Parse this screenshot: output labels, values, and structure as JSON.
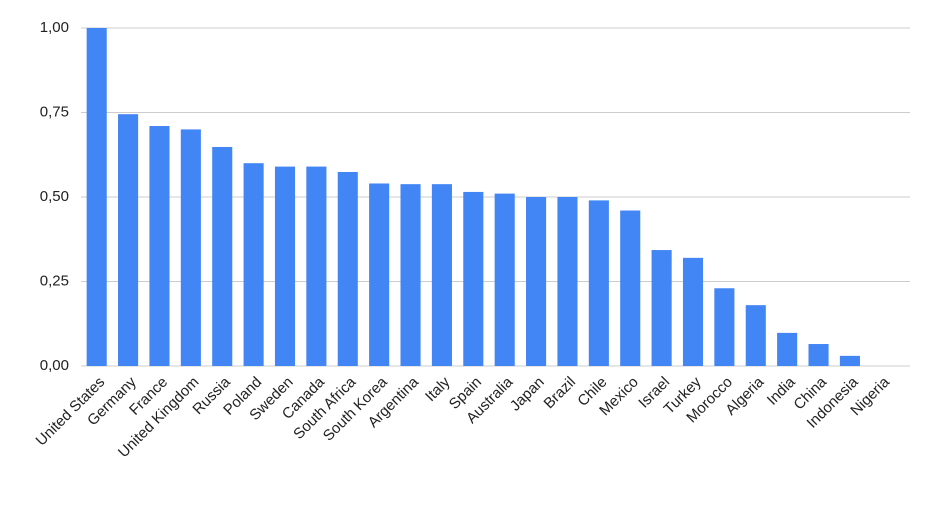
{
  "chart_data": {
    "type": "bar",
    "categories": [
      "United States",
      "Germany",
      "France",
      "United Kingdom",
      "Russia",
      "Poland",
      "Sweden",
      "Canada",
      "South Africa",
      "South Korea",
      "Argentina",
      "Italy",
      "Spain",
      "Australia",
      "Japan",
      "Brazil",
      "Chile",
      "Mexico",
      "Israel",
      "Turkey",
      "Morocco",
      "Algeria",
      "India",
      "China",
      "Indonesia",
      "Nigeria"
    ],
    "values": [
      1.0,
      0.745,
      0.71,
      0.7,
      0.648,
      0.6,
      0.59,
      0.59,
      0.574,
      0.54,
      0.538,
      0.538,
      0.515,
      0.51,
      0.5,
      0.5,
      0.49,
      0.46,
      0.343,
      0.32,
      0.23,
      0.18,
      0.098,
      0.065,
      0.03,
      0
    ],
    "color": "#4285f4",
    "ylim": [
      0,
      1
    ],
    "yticks": [
      {
        "value": 0,
        "label": "0,00"
      },
      {
        "value": 0.25,
        "label": "0,25"
      },
      {
        "value": 0.5,
        "label": "0,50"
      },
      {
        "value": 0.75,
        "label": "0,75"
      },
      {
        "value": 1,
        "label": "1,00"
      }
    ],
    "grid": true
  }
}
